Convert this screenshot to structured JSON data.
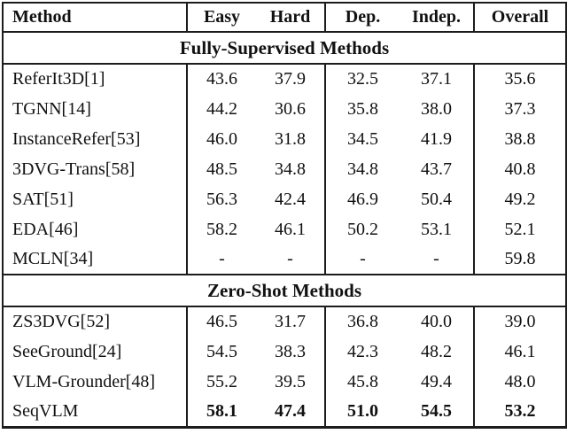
{
  "table": {
    "columns": [
      "Method",
      "Easy",
      "Hard",
      "Dep.",
      "Indep.",
      "Overall"
    ],
    "sections": [
      {
        "title": "Fully-Supervised Methods",
        "rows": [
          {
            "cells": [
              "ReferIt3D[1]",
              "43.6",
              "37.9",
              "32.5",
              "37.1",
              "35.6"
            ]
          },
          {
            "cells": [
              "TGNN[14]",
              "44.2",
              "30.6",
              "35.8",
              "38.0",
              "37.3"
            ]
          },
          {
            "cells": [
              "InstanceRefer[53]",
              "46.0",
              "31.8",
              "34.5",
              "41.9",
              "38.8"
            ]
          },
          {
            "cells": [
              "3DVG-Trans[58]",
              "48.5",
              "34.8",
              "34.8",
              "43.7",
              "40.8"
            ]
          },
          {
            "cells": [
              "SAT[51]",
              "56.3",
              "42.4",
              "46.9",
              "50.4",
              "49.2"
            ]
          },
          {
            "cells": [
              "EDA[46]",
              "58.2",
              "46.1",
              "50.2",
              "53.1",
              "52.1"
            ]
          },
          {
            "cells": [
              "MCLN[34]",
              "-",
              "-",
              "-",
              "-",
              "59.8"
            ]
          }
        ]
      },
      {
        "title": "Zero-Shot Methods",
        "rows": [
          {
            "cells": [
              "ZS3DVG[52]",
              "46.5",
              "31.7",
              "36.8",
              "40.0",
              "39.0"
            ]
          },
          {
            "cells": [
              "SeeGround[24]",
              "54.5",
              "38.3",
              "42.3",
              "48.2",
              "46.1"
            ]
          },
          {
            "cells": [
              "VLM-Grounder[48]",
              "55.2",
              "39.5",
              "45.8",
              "49.4",
              "48.0"
            ]
          },
          {
            "cells": [
              "SeqVLM",
              "58.1",
              "47.4",
              "51.0",
              "54.5",
              "53.2"
            ],
            "bold": true
          }
        ]
      }
    ]
  }
}
